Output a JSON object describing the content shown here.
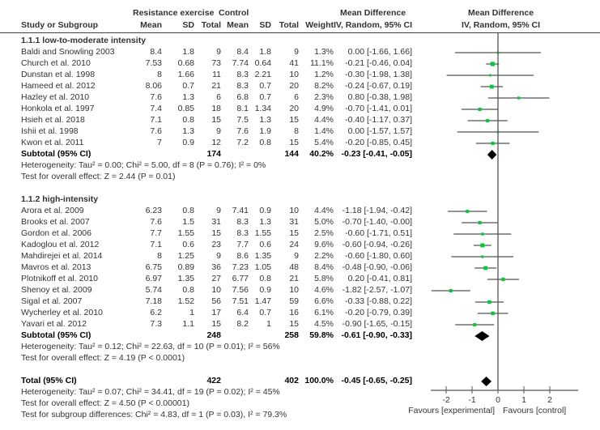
{
  "chart_data": {
    "type": "forest",
    "title": "",
    "columns": {
      "group_exp": "Resistance exercise",
      "group_ctrl": "Control",
      "study": "Study or Subgroup",
      "mean": "Mean",
      "sd": "SD",
      "total": "Total",
      "weight": "Weight",
      "md_title": "Mean Difference",
      "md_sub": "IV, Random, 95% CI",
      "plot_title": "Mean Difference",
      "plot_sub": "IV, Random, 95% CI"
    },
    "xlim": [
      -3,
      3
    ],
    "x_ticks": [
      -2,
      -1,
      0,
      1,
      2
    ],
    "x_tick_labels": [
      "-2",
      "-1",
      "0",
      "1",
      "2"
    ],
    "xlabel_left": "Favours [experimental]",
    "xlabel_right": "Favours [control]",
    "subgroups": [
      {
        "name": "1.1.1 low-to-moderate intensity",
        "studies": [
          {
            "study": "Baldi and Snowling 2003",
            "e_mean": "8.4",
            "e_sd": "1.8",
            "e_n": "9",
            "c_mean": "8.4",
            "c_sd": "1.8",
            "c_n": "9",
            "weight": "1.3%",
            "md_text": "0.00 [-1.66, 1.66]",
            "md": 0.0,
            "lo": -1.66,
            "hi": 1.66,
            "w": 1.3
          },
          {
            "study": "Church et al. 2010",
            "e_mean": "7.53",
            "e_sd": "0.68",
            "e_n": "73",
            "c_mean": "7.74",
            "c_sd": "0.64",
            "c_n": "41",
            "weight": "11.1%",
            "md_text": "-0.21 [-0.46, 0.04]",
            "md": -0.21,
            "lo": -0.46,
            "hi": 0.04,
            "w": 11.1
          },
          {
            "study": "Dunstan et al. 1998",
            "e_mean": "8",
            "e_sd": "1.66",
            "e_n": "11",
            "c_mean": "8.3",
            "c_sd": "2.21",
            "c_n": "10",
            "weight": "1.2%",
            "md_text": "-0.30 [-1.98, 1.38]",
            "md": -0.3,
            "lo": -1.98,
            "hi": 1.38,
            "w": 1.2
          },
          {
            "study": "Hameed et al. 2012",
            "e_mean": "8.06",
            "e_sd": "0.7",
            "e_n": "21",
            "c_mean": "8.3",
            "c_sd": "0.7",
            "c_n": "20",
            "weight": "8.2%",
            "md_text": "-0.24 [-0.67, 0.19]",
            "md": -0.24,
            "lo": -0.67,
            "hi": 0.19,
            "w": 8.2
          },
          {
            "study": "Hazley et al. 2010",
            "e_mean": "7.6",
            "e_sd": "1.3",
            "e_n": "6",
            "c_mean": "6.8",
            "c_sd": "0.7",
            "c_n": "6",
            "weight": "2.3%",
            "md_text": "0.80 [-0.38, 1.98]",
            "md": 0.8,
            "lo": -0.38,
            "hi": 1.98,
            "w": 2.3
          },
          {
            "study": "Honkola et al. 1997",
            "e_mean": "7.4",
            "e_sd": "0.85",
            "e_n": "18",
            "c_mean": "8.1",
            "c_sd": "1.34",
            "c_n": "20",
            "weight": "4.9%",
            "md_text": "-0.70 [-1.41, 0.01]",
            "md": -0.7,
            "lo": -1.41,
            "hi": 0.01,
            "w": 4.9
          },
          {
            "study": "Hsieh et al. 2018",
            "e_mean": "7.1",
            "e_sd": "0.8",
            "e_n": "15",
            "c_mean": "7.5",
            "c_sd": "1.3",
            "c_n": "15",
            "weight": "4.4%",
            "md_text": "-0.40 [-1.17, 0.37]",
            "md": -0.4,
            "lo": -1.17,
            "hi": 0.37,
            "w": 4.4
          },
          {
            "study": "Ishii et al. 1998",
            "e_mean": "7.6",
            "e_sd": "1.3",
            "e_n": "9",
            "c_mean": "7.6",
            "c_sd": "1.9",
            "c_n": "8",
            "weight": "1.4%",
            "md_text": "0.00 [-1.57, 1.57]",
            "md": 0.0,
            "lo": -1.57,
            "hi": 1.57,
            "w": 1.4
          },
          {
            "study": "Kwon et al. 2011",
            "e_mean": "7",
            "e_sd": "0.9",
            "e_n": "12",
            "c_mean": "7.2",
            "c_sd": "0.8",
            "c_n": "15",
            "weight": "5.4%",
            "md_text": "-0.20 [-0.85, 0.45]",
            "md": -0.2,
            "lo": -0.85,
            "hi": 0.45,
            "w": 5.4
          }
        ],
        "subtotal": {
          "label": "Subtotal (95% CI)",
          "e_n": "174",
          "c_n": "144",
          "weight": "40.2%",
          "md_text": "-0.23 [-0.41, -0.05]",
          "md": -0.23,
          "lo": -0.41,
          "hi": -0.05
        },
        "heterogeneity": "Heterogeneity: Tau² = 0.00; Chi² = 5.00, df = 8 (P = 0.76); I² = 0%",
        "overall_effect": "Test for overall effect: Z = 2.44 (P = 0.01)"
      },
      {
        "name": "1.1.2 high-intensity",
        "studies": [
          {
            "study": "Arora et al. 2009",
            "e_mean": "6.23",
            "e_sd": "0.8",
            "e_n": "9",
            "c_mean": "7.41",
            "c_sd": "0.9",
            "c_n": "10",
            "weight": "4.4%",
            "md_text": "-1.18 [-1.94, -0.42]",
            "md": -1.18,
            "lo": -1.94,
            "hi": -0.42,
            "w": 4.4
          },
          {
            "study": "Brooks et al. 2007",
            "e_mean": "7.6",
            "e_sd": "1.5",
            "e_n": "31",
            "c_mean": "8.3",
            "c_sd": "1.3",
            "c_n": "31",
            "weight": "5.0%",
            "md_text": "-0.70 [-1.40, -0.00]",
            "md": -0.7,
            "lo": -1.4,
            "hi": 0.0,
            "w": 5.0
          },
          {
            "study": "Gordon et al. 2006",
            "e_mean": "7.7",
            "e_sd": "1.55",
            "e_n": "15",
            "c_mean": "8.3",
            "c_sd": "1.55",
            "c_n": "15",
            "weight": "2.5%",
            "md_text": "-0.60 [-1.71, 0.51]",
            "md": -0.6,
            "lo": -1.71,
            "hi": 0.51,
            "w": 2.5
          },
          {
            "study": "Kadoglou et al. 2012",
            "e_mean": "7.1",
            "e_sd": "0.6",
            "e_n": "23",
            "c_mean": "7.7",
            "c_sd": "0.6",
            "c_n": "24",
            "weight": "9.6%",
            "md_text": "-0.60 [-0.94, -0.26]",
            "md": -0.6,
            "lo": -0.94,
            "hi": -0.26,
            "w": 9.6
          },
          {
            "study": "Mahdirejei et al. 2014",
            "e_mean": "8",
            "e_sd": "1.25",
            "e_n": "9",
            "c_mean": "8.6",
            "c_sd": "1.35",
            "c_n": "9",
            "weight": "2.2%",
            "md_text": "-0.60 [-1.80, 0.60]",
            "md": -0.6,
            "lo": -1.8,
            "hi": 0.6,
            "w": 2.2
          },
          {
            "study": "Mavros et al. 2013",
            "e_mean": "6.75",
            "e_sd": "0.89",
            "e_n": "36",
            "c_mean": "7.23",
            "c_sd": "1.05",
            "c_n": "48",
            "weight": "8.4%",
            "md_text": "-0.48 [-0.90, -0.06]",
            "md": -0.48,
            "lo": -0.9,
            "hi": -0.06,
            "w": 8.4
          },
          {
            "study": "Plotnikoff et al. 2010",
            "e_mean": "6.97",
            "e_sd": "1.35",
            "e_n": "27",
            "c_mean": "6.77",
            "c_sd": "0.8",
            "c_n": "21",
            "weight": "5.8%",
            "md_text": "0.20 [-0.41, 0.81]",
            "md": 0.2,
            "lo": -0.41,
            "hi": 0.81,
            "w": 5.8
          },
          {
            "study": "Shenoy et al. 2009",
            "e_mean": "5.74",
            "e_sd": "0.8",
            "e_n": "10",
            "c_mean": "7.56",
            "c_sd": "0.9",
            "c_n": "10",
            "weight": "4.6%",
            "md_text": "-1.82 [-2.57, -1.07]",
            "md": -1.82,
            "lo": -2.57,
            "hi": -1.07,
            "w": 4.6
          },
          {
            "study": "Sigal et al. 2007",
            "e_mean": "7.18",
            "e_sd": "1.52",
            "e_n": "56",
            "c_mean": "7.51",
            "c_sd": "1.47",
            "c_n": "59",
            "weight": "6.6%",
            "md_text": "-0.33 [-0.88, 0.22]",
            "md": -0.33,
            "lo": -0.88,
            "hi": 0.22,
            "w": 6.6
          },
          {
            "study": "Wycherley et al. 2010",
            "e_mean": "6.2",
            "e_sd": "1",
            "e_n": "17",
            "c_mean": "6.4",
            "c_sd": "0.7",
            "c_n": "16",
            "weight": "6.1%",
            "md_text": "-0.20 [-0.79, 0.39]",
            "md": -0.2,
            "lo": -0.79,
            "hi": 0.39,
            "w": 6.1
          },
          {
            "study": "Yavari et al. 2012",
            "e_mean": "7.3",
            "e_sd": "1.1",
            "e_n": "15",
            "c_mean": "8.2",
            "c_sd": "1",
            "c_n": "15",
            "weight": "4.5%",
            "md_text": "-0.90 [-1.65, -0.15]",
            "md": -0.9,
            "lo": -1.65,
            "hi": -0.15,
            "w": 4.5
          }
        ],
        "subtotal": {
          "label": "Subtotal (95% CI)",
          "e_n": "248",
          "c_n": "258",
          "weight": "59.8%",
          "md_text": "-0.61 [-0.90, -0.33]",
          "md": -0.61,
          "lo": -0.9,
          "hi": -0.33
        },
        "heterogeneity": "Heterogeneity: Tau² = 0.12; Chi² = 22.63, df = 10 (P = 0.01); I² = 56%",
        "overall_effect": "Test for overall effect: Z = 4.19 (P < 0.0001)"
      }
    ],
    "total": {
      "label": "Total (95% CI)",
      "e_n": "422",
      "c_n": "402",
      "weight": "100.0%",
      "md_text": "-0.45 [-0.65, -0.25]",
      "md": -0.45,
      "lo": -0.65,
      "hi": -0.25
    },
    "total_heterogeneity": "Heterogeneity: Tau² = 0.07; Chi² = 34.41, df = 19 (P = 0.02); I² = 45%",
    "total_overall_effect": "Test for overall effect: Z = 4.50 (P < 0.00001)",
    "subgroup_differences": "Test for subgroup differences: Chi² = 4.83, df = 1 (P = 0.03), I² = 79.3%",
    "colors": {
      "marker": "#00cc33",
      "line": "#555555",
      "diamond": "#000000",
      "axis": "#555555"
    }
  }
}
